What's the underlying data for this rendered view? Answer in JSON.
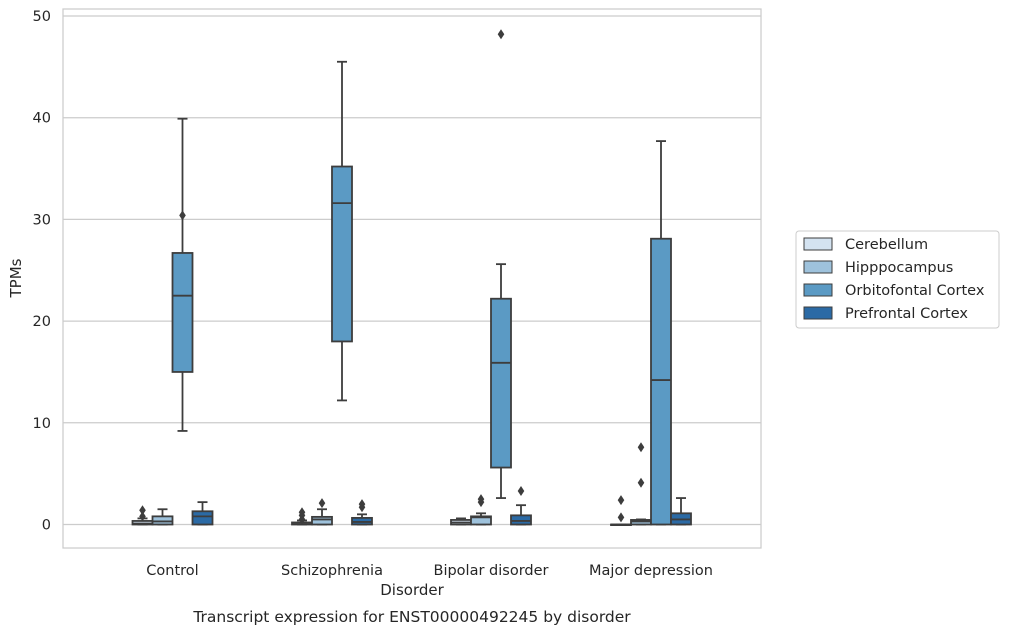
{
  "chart_data": {
    "type": "box",
    "caption": "Transcript expression for ENST00000492245 by disorder",
    "xlabel": "Disorder",
    "ylabel": "TPMs",
    "ylim": [
      -2.2,
      50.6
    ],
    "yticks": [
      0,
      10,
      20,
      30,
      40,
      50
    ],
    "grid": "horizontal",
    "legend_position": "right",
    "categories": [
      "Control",
      "Schizophrenia",
      "Bipolar disorder",
      "Major depression"
    ],
    "series": [
      {
        "name": "Cerebellum",
        "color": "#d4e3f1",
        "boxes": [
          {
            "whislo": 0.0,
            "q1": 0.0,
            "med": 0.1,
            "q3": 0.35,
            "whishi": 0.6,
            "fliers": [
              0.8,
              1.4
            ]
          },
          {
            "whislo": 0.0,
            "q1": 0.0,
            "med": 0.05,
            "q3": 0.2,
            "whishi": 0.4,
            "fliers": [
              0.5,
              0.9,
              1.2
            ]
          },
          {
            "whislo": 0.0,
            "q1": 0.0,
            "med": 0.2,
            "q3": 0.45,
            "whishi": 0.6,
            "fliers": []
          },
          {
            "whislo": 0.0,
            "q1": 0.0,
            "med": 0.0,
            "q3": 0.0,
            "whishi": 0.0,
            "fliers": [
              0.7,
              2.4
            ]
          }
        ]
      },
      {
        "name": "Hipppocampus",
        "color": "#9ec2dc",
        "boxes": [
          {
            "whislo": 0.0,
            "q1": 0.0,
            "med": 0.3,
            "q3": 0.8,
            "whishi": 1.5,
            "fliers": []
          },
          {
            "whislo": 0.0,
            "q1": 0.0,
            "med": 0.5,
            "q3": 0.75,
            "whishi": 1.5,
            "fliers": [
              2.1
            ]
          },
          {
            "whislo": 0.0,
            "q1": 0.0,
            "med": 0.7,
            "q3": 0.8,
            "whishi": 1.1,
            "fliers": [
              2.2,
              2.5
            ]
          },
          {
            "whislo": 0.0,
            "q1": 0.0,
            "med": 0.3,
            "q3": 0.45,
            "whishi": 0.5,
            "fliers": [
              4.1,
              7.6
            ]
          }
        ]
      },
      {
        "name": "Orbitofontal Cortex",
        "color": "#5b9ac4",
        "boxes": [
          {
            "whislo": 9.2,
            "q1": 15.0,
            "med": 22.5,
            "q3": 26.7,
            "whishi": 39.9,
            "fliers": [
              30.4
            ]
          },
          {
            "whislo": 12.2,
            "q1": 18.0,
            "med": 31.6,
            "q3": 35.2,
            "whishi": 45.5,
            "fliers": []
          },
          {
            "whislo": 2.6,
            "q1": 5.6,
            "med": 15.9,
            "q3": 22.2,
            "whishi": 25.6,
            "fliers": [
              48.2
            ]
          },
          {
            "whislo": 0.0,
            "q1": 0.0,
            "med": 14.2,
            "q3": 28.1,
            "whishi": 37.7,
            "fliers": []
          }
        ]
      },
      {
        "name": "Prefrontal Cortex",
        "color": "#2b6aa5",
        "boxes": [
          {
            "whislo": 0.0,
            "q1": 0.0,
            "med": 0.8,
            "q3": 1.3,
            "whishi": 2.2,
            "fliers": []
          },
          {
            "whislo": 0.0,
            "q1": 0.0,
            "med": 0.25,
            "q3": 0.65,
            "whishi": 1.0,
            "fliers": [
              1.7,
              2.0
            ]
          },
          {
            "whislo": 0.0,
            "q1": 0.0,
            "med": 0.35,
            "q3": 0.9,
            "whishi": 1.9,
            "fliers": [
              3.3
            ]
          },
          {
            "whislo": 0.0,
            "q1": 0.0,
            "med": 0.5,
            "q3": 1.1,
            "whishi": 2.6,
            "fliers": []
          }
        ]
      }
    ]
  }
}
